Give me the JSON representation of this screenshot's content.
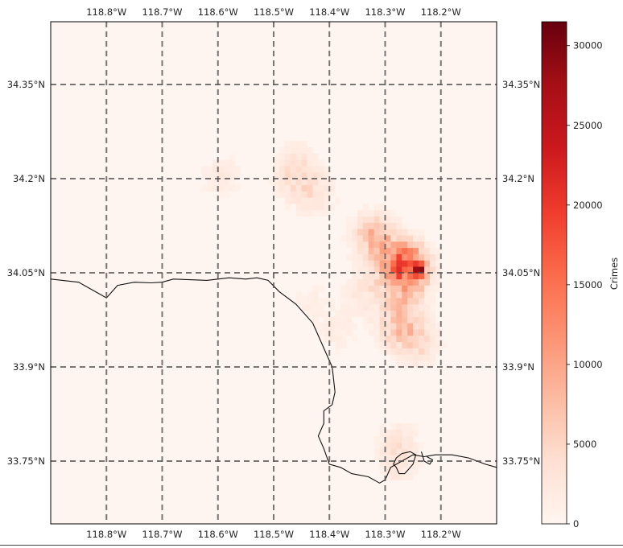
{
  "chart_data": {
    "type": "heatmap",
    "title": "",
    "colormap": "Reds",
    "lon_range": [
      -118.9,
      -118.1
    ],
    "lat_range": [
      33.65,
      34.45
    ],
    "x_ticks": [
      {
        "value": -118.8,
        "label": "118.8°W"
      },
      {
        "value": -118.7,
        "label": "118.7°W"
      },
      {
        "value": -118.6,
        "label": "118.6°W"
      },
      {
        "value": -118.5,
        "label": "118.5°W"
      },
      {
        "value": -118.4,
        "label": "118.4°W"
      },
      {
        "value": -118.3,
        "label": "118.3°W"
      },
      {
        "value": -118.2,
        "label": "118.2°W"
      }
    ],
    "y_ticks": [
      {
        "value": 34.35,
        "label": "34.35°N"
      },
      {
        "value": 34.2,
        "label": "34.2°N"
      },
      {
        "value": 34.05,
        "label": "34.05°N"
      },
      {
        "value": 33.9,
        "label": "33.9°N"
      },
      {
        "value": 33.75,
        "label": "33.75°N"
      }
    ],
    "gridlines": true,
    "colorbar": {
      "label": "Crimes",
      "min": 0,
      "max": 31500,
      "ticks": [
        0,
        5000,
        10000,
        15000,
        20000,
        25000,
        30000
      ]
    },
    "hotspots": [
      {
        "lon": -118.243,
        "lat": 34.05,
        "value": 31500
      },
      {
        "lon": -118.255,
        "lat": 34.05,
        "value": 14000
      },
      {
        "lon": -118.268,
        "lat": 34.06,
        "value": 11000
      },
      {
        "lon": -118.285,
        "lat": 34.065,
        "value": 8000
      },
      {
        "lon": -118.33,
        "lat": 34.105,
        "value": 9000
      },
      {
        "lon": -118.315,
        "lat": 34.095,
        "value": 6000
      },
      {
        "lon": -118.31,
        "lat": 34.03,
        "value": 5000
      },
      {
        "lon": -118.27,
        "lat": 34.02,
        "value": 6000
      },
      {
        "lon": -118.28,
        "lat": 33.98,
        "value": 6500
      },
      {
        "lon": -118.26,
        "lat": 33.95,
        "value": 5500
      },
      {
        "lon": -118.24,
        "lat": 33.93,
        "value": 5000
      },
      {
        "lon": -118.29,
        "lat": 33.95,
        "value": 4500
      },
      {
        "lon": -118.35,
        "lat": 34.01,
        "value": 3500
      },
      {
        "lon": -118.43,
        "lat": 34.17,
        "value": 5500
      },
      {
        "lon": -118.47,
        "lat": 34.19,
        "value": 4500
      },
      {
        "lon": -118.46,
        "lat": 34.22,
        "value": 5000
      },
      {
        "lon": -118.6,
        "lat": 34.2,
        "value": 4000
      },
      {
        "lon": -118.28,
        "lat": 33.78,
        "value": 3500
      },
      {
        "lon": -118.285,
        "lat": 33.745,
        "value": 5500
      },
      {
        "lon": -118.39,
        "lat": 33.95,
        "value": 3000
      },
      {
        "lon": -118.44,
        "lat": 34.0,
        "value": 2500
      }
    ]
  }
}
